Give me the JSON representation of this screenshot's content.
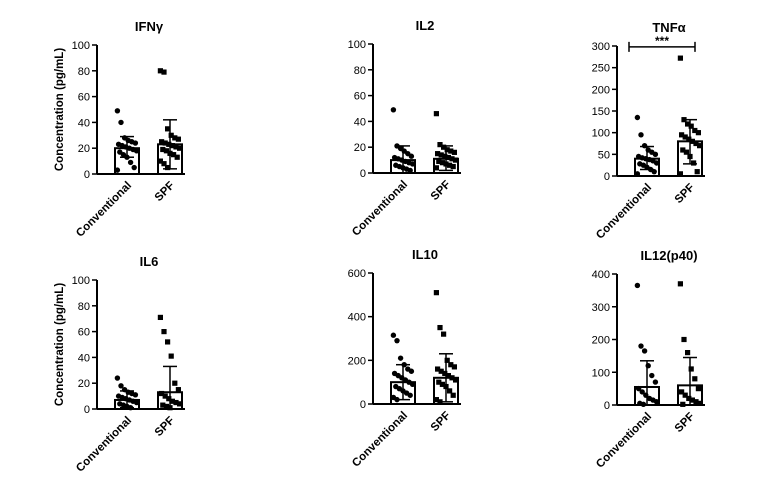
{
  "colors": {
    "ink": "#000000",
    "background": "#ffffff"
  },
  "figure": {
    "ylabel": "Concentration (pg/mL)"
  },
  "chart_data": [
    {
      "type": "bar",
      "title": "IFNγ",
      "categories": [
        "Conventional",
        "SPF"
      ],
      "ylabel": "Concentration (pg/mL)",
      "ylim": [
        0,
        100
      ],
      "yticks": [
        0,
        20,
        40,
        60,
        80,
        100
      ],
      "series": [
        {
          "values": [
            20,
            23
          ]
        }
      ],
      "error_bars": [
        {
          "low": 13,
          "high": 29
        },
        {
          "low": 4,
          "high": 42
        }
      ],
      "points": [
        [
          49,
          40,
          28,
          26,
          25,
          24,
          23,
          22,
          21,
          20,
          19,
          18,
          17,
          15,
          13,
          9,
          5,
          3
        ],
        [
          80,
          79,
          35,
          30,
          28,
          27,
          25,
          24,
          23,
          22,
          21,
          20,
          19,
          18,
          16,
          15,
          13,
          10,
          8,
          5
        ]
      ],
      "annotation": null
    },
    {
      "type": "bar",
      "title": "IL2",
      "categories": [
        "Conventional",
        "SPF"
      ],
      "ylabel": "",
      "ylim": [
        0,
        100
      ],
      "yticks": [
        0,
        20,
        40,
        60,
        80,
        100
      ],
      "series": [
        {
          "values": [
            10,
            11
          ]
        }
      ],
      "error_bars": [
        {
          "low": 0,
          "high": 21
        },
        {
          "low": 2,
          "high": 21
        }
      ],
      "points": [
        [
          49,
          21,
          19,
          17,
          15,
          13,
          12,
          11,
          10,
          9,
          8,
          7,
          6,
          5,
          4,
          3,
          2
        ],
        [
          46,
          22,
          20,
          18,
          17,
          16,
          15,
          14,
          13,
          12,
          11,
          10,
          9,
          8,
          7,
          6,
          5,
          4
        ]
      ],
      "annotation": null
    },
    {
      "type": "bar",
      "title": "TNFα",
      "categories": [
        "Conventional",
        "SPF"
      ],
      "ylabel": "",
      "ylim": [
        0,
        300
      ],
      "yticks": [
        0,
        50,
        100,
        150,
        200,
        250,
        300
      ],
      "series": [
        {
          "values": [
            40,
            80
          ]
        }
      ],
      "error_bars": [
        {
          "low": 15,
          "high": 68
        },
        {
          "low": 28,
          "high": 130
        }
      ],
      "points": [
        [
          135,
          95,
          70,
          60,
          55,
          50,
          45,
          42,
          40,
          38,
          35,
          30,
          28,
          25,
          20,
          15,
          10,
          5
        ],
        [
          272,
          130,
          120,
          115,
          105,
          100,
          95,
          90,
          85,
          80,
          75,
          70,
          60,
          55,
          45,
          30,
          10,
          5
        ]
      ],
      "annotation": {
        "text": "***",
        "from": 0,
        "to": 1,
        "y": 298
      }
    },
    {
      "type": "bar",
      "title": "IL6",
      "categories": [
        "Conventional",
        "SPF"
      ],
      "ylabel": "Concentration (pg/mL)",
      "ylim": [
        0,
        100
      ],
      "yticks": [
        0,
        20,
        40,
        60,
        80,
        100
      ],
      "series": [
        {
          "values": [
            7,
            13
          ]
        }
      ],
      "error_bars": [
        {
          "low": 1,
          "high": 14
        },
        {
          "low": 0,
          "high": 33
        }
      ],
      "points": [
        [
          24,
          18,
          15,
          13,
          12,
          11,
          10,
          9,
          8,
          7,
          6,
          5,
          4,
          3,
          2,
          1
        ],
        [
          71,
          60,
          52,
          41,
          20,
          15,
          12,
          10,
          8,
          6,
          5,
          4,
          3,
          2,
          1
        ]
      ],
      "annotation": null
    },
    {
      "type": "bar",
      "title": "IL10",
      "categories": [
        "Conventional",
        "SPF"
      ],
      "ylabel": "",
      "ylim": [
        0,
        600
      ],
      "yticks": [
        0,
        200,
        400,
        600
      ],
      "series": [
        {
          "values": [
            100,
            120
          ]
        }
      ],
      "error_bars": [
        {
          "low": 20,
          "high": 180
        },
        {
          "low": 10,
          "high": 230
        }
      ],
      "points": [
        [
          315,
          290,
          210,
          180,
          160,
          150,
          140,
          130,
          120,
          110,
          100,
          90,
          80,
          70,
          60,
          50,
          40,
          30,
          20
        ],
        [
          510,
          350,
          320,
          200,
          180,
          170,
          160,
          150,
          140,
          130,
          120,
          110,
          100,
          90,
          80,
          60,
          40,
          20,
          10
        ]
      ],
      "annotation": null
    },
    {
      "type": "bar",
      "title": "IL12(p40)",
      "categories": [
        "Conventional",
        "SPF"
      ],
      "ylabel": "",
      "ylim": [
        0,
        400
      ],
      "yticks": [
        0,
        100,
        200,
        300,
        400
      ],
      "series": [
        {
          "values": [
            55,
            60
          ]
        }
      ],
      "error_bars": [
        {
          "low": 0,
          "high": 135
        },
        {
          "low": 0,
          "high": 145
        }
      ],
      "points": [
        [
          365,
          180,
          165,
          120,
          90,
          70,
          50,
          40,
          30,
          20,
          15,
          10,
          5,
          2
        ],
        [
          370,
          200,
          160,
          110,
          80,
          50,
          40,
          30,
          20,
          15,
          10,
          5,
          2
        ]
      ],
      "annotation": null
    }
  ]
}
